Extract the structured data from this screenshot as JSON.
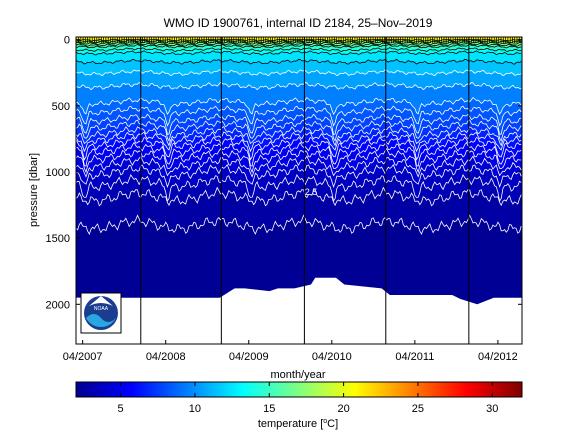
{
  "chart_data": {
    "type": "heatmap",
    "title": "WMO ID 1900761, internal ID 2184, 25–Nov–2019",
    "xlabel": "month/year",
    "ylabel": "pressure [dbar]",
    "x_tick_labels": [
      "04/2007",
      "04/2008",
      "04/2009",
      "04/2010",
      "04/2011",
      "04/2012"
    ],
    "x_ticks_decimal_year": [
      2007.25,
      2008.25,
      2009.25,
      2010.25,
      2011.25,
      2012.25
    ],
    "xlim": [
      2007.17,
      2012.54
    ],
    "y_ticks": [
      0,
      500,
      1000,
      1500,
      2000
    ],
    "y_tick_labels": [
      "0",
      "500",
      "1000",
      "1500",
      "2000"
    ],
    "ylim": [
      2300,
      -20
    ],
    "y_reversed": true,
    "colorbar": {
      "label_prefix": "temperature [",
      "label_sup": "o",
      "label_suffix": "C]",
      "range": [
        2,
        32
      ],
      "ticks": [
        5,
        10,
        15,
        20,
        25,
        30
      ],
      "tick_labels": [
        "5",
        "10",
        "15",
        "20",
        "25",
        "30"
      ],
      "colormap": "jet"
    },
    "contour_labels": [
      {
        "text": "2.5",
        "x": 2010.0,
        "y": 1175
      }
    ],
    "year_separators_decimal_year": [
      2007.95,
      2008.92,
      2009.92,
      2010.9,
      2011.9
    ],
    "profile_depth_max_dbar": [
      {
        "x": 2007.17,
        "p": 1950
      },
      {
        "x": 2008.9,
        "p": 1950
      },
      {
        "x": 2009.08,
        "p": 1880
      },
      {
        "x": 2009.2,
        "p": 1880
      },
      {
        "x": 2009.5,
        "p": 1900
      },
      {
        "x": 2009.6,
        "p": 1880
      },
      {
        "x": 2009.8,
        "p": 1880
      },
      {
        "x": 2010.0,
        "p": 1850
      },
      {
        "x": 2010.05,
        "p": 1800
      },
      {
        "x": 2010.3,
        "p": 1800
      },
      {
        "x": 2010.4,
        "p": 1850
      },
      {
        "x": 2010.85,
        "p": 1880
      },
      {
        "x": 2010.95,
        "p": 1930
      },
      {
        "x": 2011.7,
        "p": 1930
      },
      {
        "x": 2011.8,
        "p": 1960
      },
      {
        "x": 2012.0,
        "p": 2000
      },
      {
        "x": 2012.2,
        "p": 1950
      },
      {
        "x": 2012.54,
        "p": 1950
      }
    ],
    "contour_levels_degC": [
      2.5,
      3,
      3.5,
      4,
      4.5,
      5,
      5.5,
      6,
      6.5,
      7,
      7.5,
      8,
      8.5,
      9,
      10,
      11,
      12,
      13,
      14,
      15,
      16,
      17,
      18,
      20
    ],
    "representative_temperature_profile": [
      {
        "p": 0,
        "t": 19
      },
      {
        "p": 50,
        "t": 15
      },
      {
        "p": 100,
        "t": 13
      },
      {
        "p": 200,
        "t": 11.5
      },
      {
        "p": 300,
        "t": 10.5
      },
      {
        "p": 400,
        "t": 9.5
      },
      {
        "p": 500,
        "t": 8.8
      },
      {
        "p": 600,
        "t": 8
      },
      {
        "p": 700,
        "t": 7
      },
      {
        "p": 800,
        "t": 5.8
      },
      {
        "p": 900,
        "t": 4.8
      },
      {
        "p": 1000,
        "t": 4
      },
      {
        "p": 1100,
        "t": 3.4
      },
      {
        "p": 1200,
        "t": 2.95
      },
      {
        "p": 1300,
        "t": 2.65
      },
      {
        "p": 1400,
        "t": 2.5
      },
      {
        "p": 1600,
        "t": 2.3
      },
      {
        "p": 1800,
        "t": 2.15
      },
      {
        "p": 2000,
        "t": 2.05
      }
    ],
    "grid": false,
    "logo": "noaa-logo"
  }
}
